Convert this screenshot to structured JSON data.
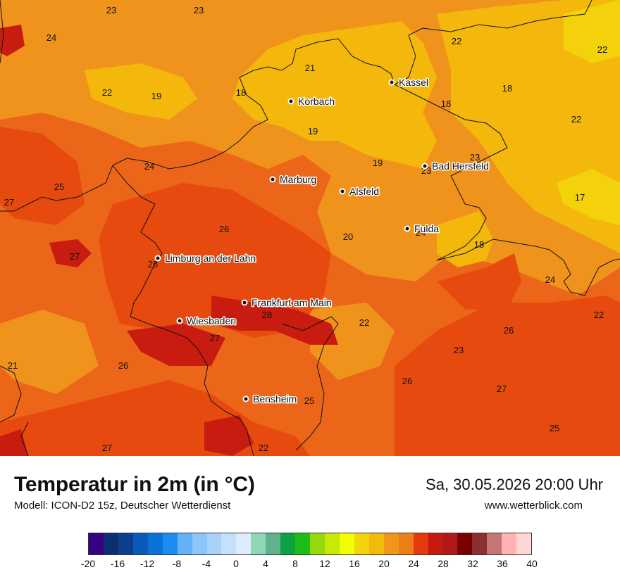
{
  "title": "Temperatur in 2m (in °C)",
  "model": "Modell: ICON-D2 15z, Deutscher Wetterdienst",
  "datetime": "Sa, 30.05.2026 20:00 Uhr",
  "website": "www.wetterblick.com",
  "cities": [
    {
      "name": "Kassel"
    },
    {
      "name": "Korbach"
    },
    {
      "name": "Bad Hersfeld"
    },
    {
      "name": "Marburg"
    },
    {
      "name": "Alsfeld"
    },
    {
      "name": "Fulda"
    },
    {
      "name": "Limburg an der Lahn"
    },
    {
      "name": "Frankfurt am Main"
    },
    {
      "name": "Wiesbaden"
    },
    {
      "name": "Bensheim"
    }
  ],
  "temperature_labels": [
    "23",
    "23",
    "24",
    "22",
    "19",
    "18",
    "21",
    "22",
    "18",
    "22",
    "18",
    "22",
    "24",
    "25",
    "27",
    "19",
    "19",
    "23",
    "23",
    "17",
    "26",
    "20",
    "24",
    "18",
    "27",
    "28",
    "28",
    "27",
    "22",
    "26",
    "24",
    "22",
    "21",
    "26",
    "23",
    "26",
    "27",
    "25",
    "25",
    "27",
    "22"
  ],
  "legend": {
    "ticks": [
      "-20",
      "-16",
      "-12",
      "-8",
      "-4",
      "0",
      "4",
      "8",
      "12",
      "16",
      "20",
      "24",
      "28",
      "32",
      "36",
      "40"
    ],
    "colors": [
      "#380082",
      "#0d2f6f",
      "#0e3f8c",
      "#0a5bb7",
      "#0b72da",
      "#1a8cf2",
      "#64b1f5",
      "#8cc5f8",
      "#a8d3f9",
      "#c4e0fb",
      "#ddecfc",
      "#8fd6b9",
      "#60b28d",
      "#0da141",
      "#1fbc16",
      "#96d80c",
      "#c8e806",
      "#f1ff00",
      "#f3d30a",
      "#f3b90b",
      "#f0961b",
      "#ee7f18",
      "#e6390e",
      "#c41a10",
      "#b01a1a",
      "#7a0000",
      "#8c2f32",
      "#c57572",
      "#ffb3b3",
      "#ffd6d6"
    ]
  },
  "map_colors": {
    "base": "#ec6619",
    "warm_1": "#e74a0f",
    "warm_2": "#c81c10",
    "cool_1": "#f0931d",
    "cool_2": "#f3b80b",
    "cool_3": "#f3d20b"
  }
}
